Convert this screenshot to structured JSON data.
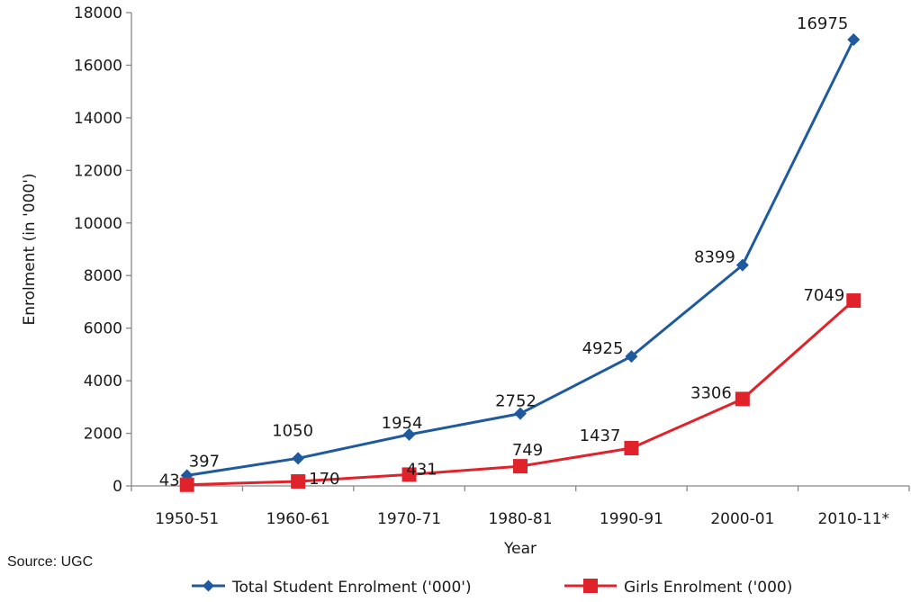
{
  "chart_data": {
    "type": "line",
    "title": "",
    "xlabel": "Year",
    "ylabel": "Enrolment (in '000')",
    "ylim": [
      0,
      18000
    ],
    "yticks": [
      "0",
      "2000",
      "4000",
      "6000",
      "8000",
      "10000",
      "12000",
      "14000",
      "16000",
      "18000"
    ],
    "categories": [
      "1950-51",
      "1960-61",
      "1970-71",
      "1980-81",
      "1990-91",
      "2000-01",
      "2010-11*"
    ],
    "series": [
      {
        "name": "Total Student Enrolment ('000')",
        "color": "#1f5a9e",
        "marker": "diamond",
        "values": [
          397,
          1050,
          1954,
          2752,
          4925,
          8399,
          16975
        ],
        "labels": [
          "397",
          "1050",
          "1954",
          "2752",
          "4925",
          "8399",
          "16975"
        ]
      },
      {
        "name": "Girls Enrolment ('000)",
        "color": "#e0232a",
        "marker": "square",
        "values": [
          43,
          170,
          431,
          749,
          1437,
          3306,
          7049
        ],
        "labels": [
          "43",
          "170",
          "431",
          "749",
          "1437",
          "3306",
          "7049"
        ]
      }
    ],
    "grid": false,
    "legend_position": "bottom"
  },
  "source": "Source: UGC"
}
